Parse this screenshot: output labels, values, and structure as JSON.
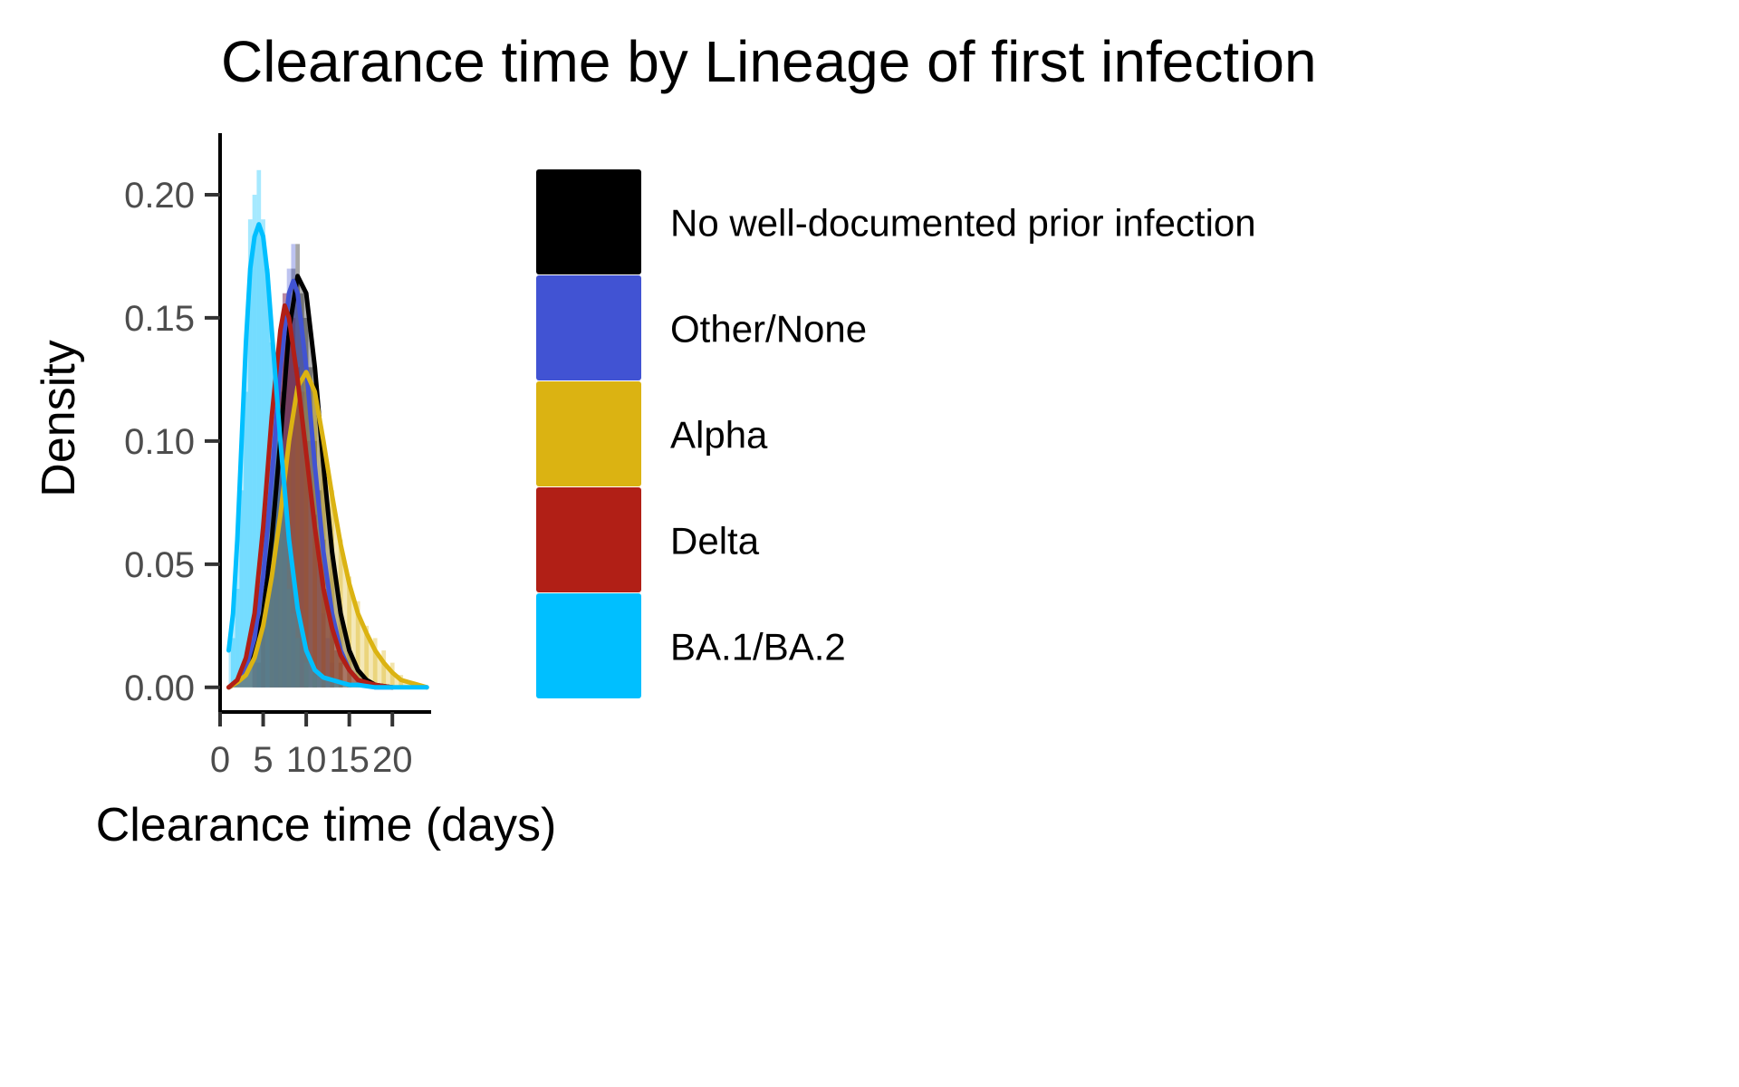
{
  "chart_data": {
    "type": "area",
    "title": "Clearance time by Lineage of first infection",
    "xlabel": "Clearance time (days)",
    "ylabel": "Density",
    "xlim": [
      0,
      24.5
    ],
    "ylim": [
      -0.01,
      0.225
    ],
    "x_ticks": [
      0,
      5,
      10,
      15,
      20
    ],
    "x_tick_labels": [
      "0",
      "5",
      "10",
      "15",
      "20"
    ],
    "y_ticks": [
      0,
      0.05,
      0.1,
      0.15,
      0.2
    ],
    "y_tick_labels": [
      "0.00",
      "0.05",
      "0.10",
      "0.15",
      "0.20"
    ],
    "grid": false,
    "legend_position": "right",
    "series": [
      {
        "name": "No well-documented prior infection",
        "color": "#000000",
        "histogram": {
          "bin_width": 0.5,
          "bins": [
            [
              4.5,
              0.01
            ],
            [
              5.0,
              0.03
            ],
            [
              5.5,
              0.05
            ],
            [
              6.0,
              0.08
            ],
            [
              6.5,
              0.1
            ],
            [
              7.0,
              0.12
            ],
            [
              7.5,
              0.14
            ],
            [
              8.0,
              0.16
            ],
            [
              8.5,
              0.17
            ],
            [
              9.0,
              0.18
            ],
            [
              9.5,
              0.16
            ],
            [
              10.0,
              0.15
            ],
            [
              10.5,
              0.13
            ],
            [
              11.0,
              0.1
            ],
            [
              11.5,
              0.08
            ],
            [
              12.0,
              0.06
            ],
            [
              12.5,
              0.04
            ],
            [
              13.0,
              0.025
            ],
            [
              13.5,
              0.015
            ],
            [
              14.0,
              0.01
            ]
          ]
        },
        "density": [
          [
            1,
            0
          ],
          [
            2,
            0.002
          ],
          [
            3,
            0.006
          ],
          [
            4,
            0.015
          ],
          [
            5,
            0.03
          ],
          [
            6,
            0.06
          ],
          [
            7,
            0.1
          ],
          [
            8,
            0.145
          ],
          [
            9,
            0.167
          ],
          [
            10,
            0.16
          ],
          [
            11,
            0.13
          ],
          [
            12,
            0.09
          ],
          [
            13,
            0.055
          ],
          [
            14,
            0.03
          ],
          [
            15,
            0.015
          ],
          [
            16,
            0.007
          ],
          [
            17,
            0.003
          ],
          [
            18,
            0.001
          ],
          [
            20,
            0
          ]
        ]
      },
      {
        "name": "Other/None",
        "color": "#4153d3",
        "histogram": {
          "bin_width": 0.5,
          "bins": [
            [
              4.0,
              0.01
            ],
            [
              4.5,
              0.02
            ],
            [
              5.0,
              0.04
            ],
            [
              5.5,
              0.06
            ],
            [
              6.0,
              0.09
            ],
            [
              6.5,
              0.11
            ],
            [
              7.0,
              0.14
            ],
            [
              7.5,
              0.16
            ],
            [
              8.0,
              0.17
            ],
            [
              8.5,
              0.18
            ],
            [
              9.0,
              0.16
            ],
            [
              9.5,
              0.15
            ],
            [
              10.0,
              0.12
            ],
            [
              10.5,
              0.1
            ],
            [
              11.0,
              0.07
            ],
            [
              11.5,
              0.05
            ],
            [
              12.0,
              0.03
            ],
            [
              12.5,
              0.02
            ],
            [
              13.0,
              0.01
            ]
          ]
        },
        "density": [
          [
            1,
            0
          ],
          [
            2,
            0.002
          ],
          [
            3,
            0.008
          ],
          [
            4,
            0.02
          ],
          [
            5,
            0.045
          ],
          [
            6,
            0.085
          ],
          [
            7,
            0.13
          ],
          [
            8,
            0.16
          ],
          [
            8.5,
            0.165
          ],
          [
            9,
            0.16
          ],
          [
            10,
            0.13
          ],
          [
            11,
            0.09
          ],
          [
            12,
            0.055
          ],
          [
            13,
            0.03
          ],
          [
            14,
            0.015
          ],
          [
            15,
            0.007
          ],
          [
            16,
            0.003
          ],
          [
            18,
            0
          ],
          [
            20,
            0
          ]
        ]
      },
      {
        "name": "Alpha",
        "color": "#dbb312",
        "histogram": {
          "bin_width": 0.5,
          "bins": [
            [
              6.0,
              0.04
            ],
            [
              7.0,
              0.07
            ],
            [
              8.0,
              0.1
            ],
            [
              9.0,
              0.12
            ],
            [
              10.0,
              0.13
            ],
            [
              11.0,
              0.12
            ],
            [
              12.0,
              0.1
            ],
            [
              13.0,
              0.08
            ],
            [
              14.0,
              0.06
            ],
            [
              15.0,
              0.045
            ],
            [
              16.0,
              0.035
            ],
            [
              17.0,
              0.025
            ],
            [
              18.0,
              0.02
            ],
            [
              19.0,
              0.015
            ],
            [
              20.0,
              0.01
            ],
            [
              21.0,
              0.005
            ]
          ]
        },
        "density": [
          [
            1,
            0
          ],
          [
            2,
            0.002
          ],
          [
            3,
            0.005
          ],
          [
            4,
            0.012
          ],
          [
            5,
            0.025
          ],
          [
            6,
            0.045
          ],
          [
            7,
            0.07
          ],
          [
            8,
            0.1
          ],
          [
            9,
            0.122
          ],
          [
            10,
            0.128
          ],
          [
            11,
            0.12
          ],
          [
            12,
            0.1
          ],
          [
            13,
            0.078
          ],
          [
            14,
            0.058
          ],
          [
            15,
            0.042
          ],
          [
            16,
            0.03
          ],
          [
            17,
            0.022
          ],
          [
            18,
            0.015
          ],
          [
            19,
            0.01
          ],
          [
            20,
            0.006
          ],
          [
            21,
            0.003
          ],
          [
            22,
            0.002
          ],
          [
            23,
            0.001
          ],
          [
            24,
            0
          ]
        ]
      },
      {
        "name": "Delta",
        "color": "#b11f16",
        "histogram": {
          "bin_width": 0.5,
          "bins": [
            [
              4.0,
              0.02
            ],
            [
              5.0,
              0.05
            ],
            [
              6.0,
              0.09
            ],
            [
              6.5,
              0.12
            ],
            [
              7.0,
              0.14
            ],
            [
              7.5,
              0.16
            ],
            [
              8.0,
              0.15
            ],
            [
              8.5,
              0.15
            ],
            [
              9.0,
              0.13
            ],
            [
              9.5,
              0.12
            ],
            [
              10.0,
              0.1
            ],
            [
              11.0,
              0.07
            ],
            [
              12.0,
              0.05
            ],
            [
              13.0,
              0.03
            ],
            [
              14.0,
              0.015
            ],
            [
              15.0,
              0.008
            ]
          ]
        },
        "density": [
          [
            1,
            0
          ],
          [
            2,
            0.003
          ],
          [
            3,
            0.012
          ],
          [
            4,
            0.03
          ],
          [
            5,
            0.065
          ],
          [
            6,
            0.11
          ],
          [
            7,
            0.145
          ],
          [
            7.5,
            0.155
          ],
          [
            8,
            0.15
          ],
          [
            9,
            0.125
          ],
          [
            10,
            0.095
          ],
          [
            11,
            0.065
          ],
          [
            12,
            0.04
          ],
          [
            13,
            0.024
          ],
          [
            14,
            0.013
          ],
          [
            15,
            0.007
          ],
          [
            16,
            0.003
          ],
          [
            18,
            0.001
          ],
          [
            20,
            0
          ]
        ]
      },
      {
        "name": "BA.1/BA.2",
        "color": "#00bfff",
        "histogram": {
          "bin_width": 0.5,
          "bins": [
            [
              1.5,
              0.02
            ],
            [
              2.0,
              0.04
            ],
            [
              2.5,
              0.08
            ],
            [
              3.0,
              0.12
            ],
            [
              3.5,
              0.19
            ],
            [
              4.0,
              0.2
            ],
            [
              4.5,
              0.21
            ],
            [
              5.0,
              0.19
            ],
            [
              5.5,
              0.17
            ],
            [
              6.0,
              0.14
            ],
            [
              6.5,
              0.11
            ],
            [
              7.0,
              0.08
            ],
            [
              7.5,
              0.06
            ],
            [
              8.0,
              0.04
            ],
            [
              8.5,
              0.03
            ],
            [
              9.0,
              0.02
            ],
            [
              10.0,
              0.01
            ],
            [
              11.0,
              0.005
            ]
          ]
        },
        "density": [
          [
            1,
            0.015
          ],
          [
            1.5,
            0.03
          ],
          [
            2,
            0.06
          ],
          [
            2.5,
            0.1
          ],
          [
            3,
            0.14
          ],
          [
            3.5,
            0.17
          ],
          [
            4,
            0.183
          ],
          [
            4.5,
            0.188
          ],
          [
            5,
            0.183
          ],
          [
            5.5,
            0.168
          ],
          [
            6,
            0.145
          ],
          [
            7,
            0.1
          ],
          [
            8,
            0.06
          ],
          [
            9,
            0.032
          ],
          [
            10,
            0.015
          ],
          [
            11,
            0.007
          ],
          [
            12,
            0.004
          ],
          [
            13,
            0.003
          ],
          [
            14,
            0.002
          ],
          [
            15,
            0.001
          ],
          [
            16,
            0.001
          ],
          [
            18,
            0
          ],
          [
            24,
            0
          ]
        ]
      }
    ]
  }
}
